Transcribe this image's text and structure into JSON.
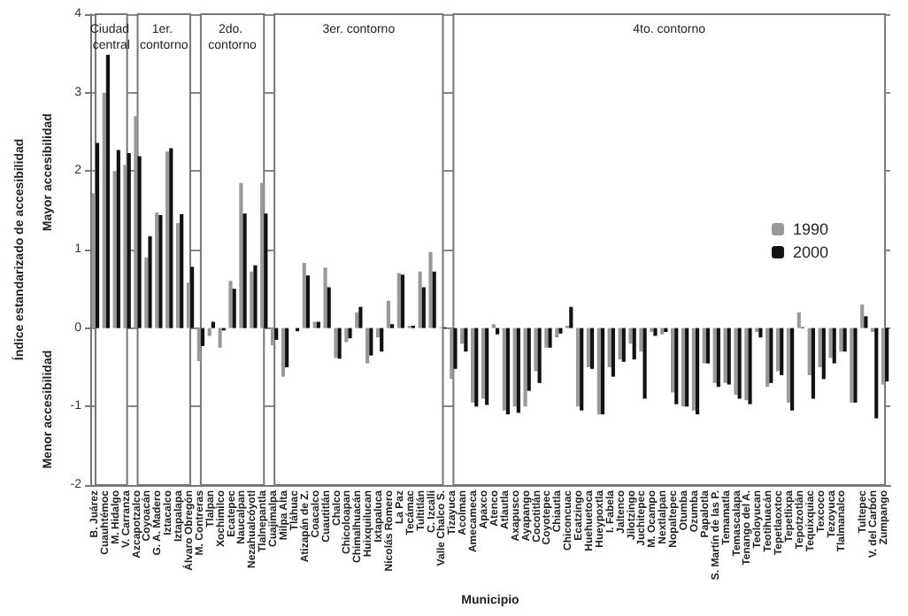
{
  "chart_data": {
    "type": "bar",
    "xlabel": "Municipio",
    "ylabel": "Índice estandarizado de accesibilidad",
    "annotations": [
      "Mayor accesibilidad",
      "Menor accesibilidad"
    ],
    "categories": [
      "B. Juárez",
      "Cuauhtémoc",
      "M. Hidalgo",
      "V. Carranza",
      "Azcapotzalco",
      "Coyoacán",
      "G. A. Madero",
      "Iztacalco",
      "Iztapalapa",
      "Álvaro Obregón",
      "M. Contreras",
      "Tlalpan",
      "Xochimilco",
      "Ecatepec",
      "Naucalpan",
      "Nezahualcóyotl",
      "Tlalnepantla",
      "Cuajimalpa",
      "Milpa Alta",
      "Tláhuac",
      "Atizapán de Z.",
      "Coacalco",
      "Cuautitlán",
      "Chalco",
      "Chicoloapan",
      "Chimalhuacán",
      "Huixquilucan",
      "Ixtapaluca",
      "Nicolás Romero",
      "La Paz",
      "Tecámac",
      "Tultitlán",
      "C. Izcalli",
      "Valle Chalco S.",
      "Tizayuca",
      "Acolman",
      "Amecameca",
      "Apaxco",
      "Atenco",
      "Atlautla",
      "Axapusco",
      "Ayapango",
      "Cocotitlán",
      "Coyotepec",
      "Chiautla",
      "Chiconcuac",
      "Ecatzingo",
      "Huehuetoca",
      "Hueypoxtla",
      "I. Fabela",
      "Jaltenco",
      "Jilotzingo",
      "Juchitepec",
      "M. Ocampo",
      "Nextlalpan",
      "Nopaltepec",
      "Otumba",
      "Ozumba",
      "Papalotla",
      "S. Martín de las P.",
      "Temamatla",
      "Temascalapa",
      "Tenango del A.",
      "Teoloyucan",
      "Teotihuacán",
      "Tepetlaoxtoc",
      "Tepetlixpa",
      "Tepotzotlán",
      "Tequixquiac",
      "Texcoco",
      "Tezoyuca",
      "Tlalmanalco",
      null,
      "Tultepec",
      "V. del Carbón",
      "Zumpango"
    ],
    "series": [
      {
        "name": "1990",
        "color": "#999999",
        "values": [
          1.72,
          3.0,
          2.0,
          2.08,
          2.7,
          0.9,
          1.47,
          2.25,
          1.34,
          0.58,
          -0.42,
          -0.1,
          -0.25,
          0.6,
          1.85,
          0.72,
          1.85,
          -0.22,
          -0.62,
          0.0,
          0.83,
          0.08,
          0.77,
          -0.38,
          -0.18,
          0.2,
          -0.45,
          -0.12,
          0.35,
          0.7,
          0.03,
          0.72,
          0.97,
          0.01,
          -0.65,
          -0.2,
          -0.95,
          -0.9,
          0.05,
          -1.05,
          -1.0,
          -1.0,
          -0.55,
          -0.25,
          -0.12,
          0.03,
          -1.0,
          -0.5,
          -1.1,
          -0.5,
          -0.4,
          -0.2,
          -0.3,
          -0.05,
          -0.08,
          -0.82,
          -1.0,
          -1.05,
          -0.45,
          -0.7,
          -0.7,
          -0.85,
          -0.92,
          -0.05,
          -0.75,
          -0.55,
          -0.95,
          0.2,
          -0.6,
          -0.5,
          -0.38,
          -0.3,
          -0.95,
          0.3,
          -0.05,
          -0.72
        ]
      },
      {
        "name": "2000",
        "color": "#111111",
        "values": [
          2.36,
          3.48,
          2.27,
          2.23,
          2.19,
          1.17,
          1.44,
          2.29,
          1.45,
          0.78,
          -0.23,
          0.08,
          -0.03,
          0.5,
          1.46,
          0.8,
          1.46,
          -0.15,
          -0.5,
          -0.04,
          0.67,
          0.08,
          0.52,
          -0.39,
          -0.13,
          0.27,
          -0.35,
          -0.3,
          0.05,
          0.68,
          0.03,
          0.52,
          0.72,
          0.01,
          -0.52,
          -0.3,
          -1.0,
          -0.98,
          -0.08,
          -1.1,
          -1.08,
          -0.8,
          -0.7,
          -0.25,
          -0.07,
          0.27,
          -1.05,
          -0.52,
          -1.1,
          -0.62,
          -0.43,
          -0.4,
          -0.9,
          -0.1,
          -0.05,
          -0.97,
          -1.0,
          -1.1,
          -0.45,
          -0.75,
          -0.72,
          -0.9,
          -0.97,
          -0.12,
          -0.7,
          -0.6,
          -1.05,
          0.01,
          -0.9,
          -0.65,
          -0.45,
          -0.3,
          -0.95,
          0.15,
          -1.15,
          -0.68
        ]
      }
    ],
    "ylim": [
      -2,
      4
    ],
    "yticks": [
      -2,
      -1,
      0,
      1,
      2,
      3,
      4
    ],
    "grid": "y",
    "legend": "right",
    "bands": [
      {
        "axis": "x",
        "from": "B. Juárez",
        "to": "V. Carranza",
        "label": "Ciudad central",
        "color": "#ffffff"
      },
      {
        "axis": "x",
        "from": "Azcapotzalco",
        "to": "Álvaro Obregón",
        "label": "1er. contorno",
        "color": "#ffffff"
      },
      {
        "axis": "x",
        "from": "M. Contreras",
        "to": "Tlalnepantla",
        "label": "2do. contorno",
        "color": "#ffffff"
      },
      {
        "axis": "x",
        "from": "Cuajimalpa",
        "to": "Valle Chalco S.",
        "label": "3er. contorno",
        "color": "#ffffff"
      },
      {
        "axis": "x",
        "from": "Tizayuca",
        "to": "Zumpango",
        "label": "4to. contorno",
        "color": "#ffffff"
      }
    ]
  }
}
